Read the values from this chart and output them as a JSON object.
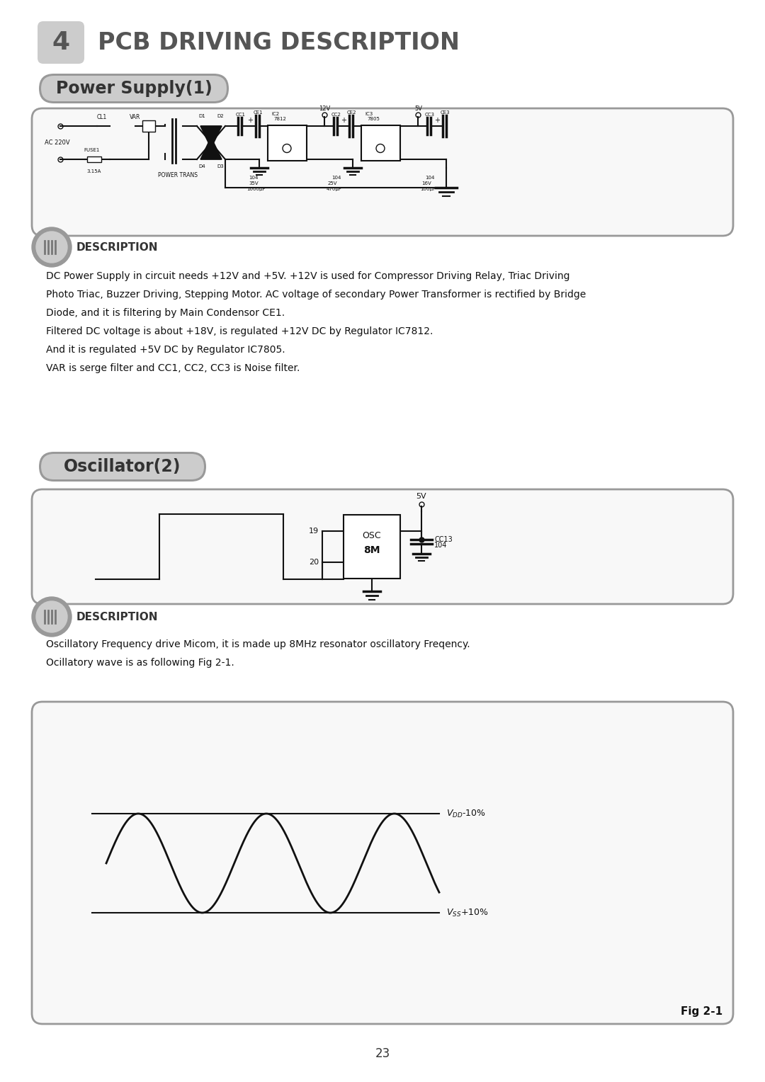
{
  "page_title_num": "4",
  "page_title_text": "PCB DRIVING DESCRIPTION",
  "section1_title": "Power Supply(1)",
  "section2_title": "Oscillator(2)",
  "desc1_title": "DESCRIPTION",
  "desc2_title": "DESCRIPTION",
  "desc1_text": [
    "DC Power Supply in circuit needs +12V and +5V. +12V is used for Compressor Driving Relay, Triac Driving",
    "Photo Triac, Buzzer Driving, Stepping Motor. AC voltage of secondary Power Transformer is rectified by Bridge",
    "Diode, and it is filtering by Main Condensor CE1.",
    "Filtered DC voltage is about +18V, is regulated +12V DC by Regulator IC7812.",
    "And it is regulated +5V DC by Regulator IC7805.",
    "VAR is serge filter and CC1, CC2, CC3 is Noise filter."
  ],
  "desc2_text": [
    "Oscillatory Frequency drive Micom, it is made up 8MHz resonator oscillatory Freqency.",
    "Ocillatory wave is as following Fig 2-1."
  ],
  "page_number": "23",
  "fig_label": "Fig 2-1",
  "bg_color": "#ffffff",
  "box_bg": "#f8f8f8",
  "box_border": "#aaaaaa",
  "title_color": "#555555",
  "text_color": "#111111"
}
